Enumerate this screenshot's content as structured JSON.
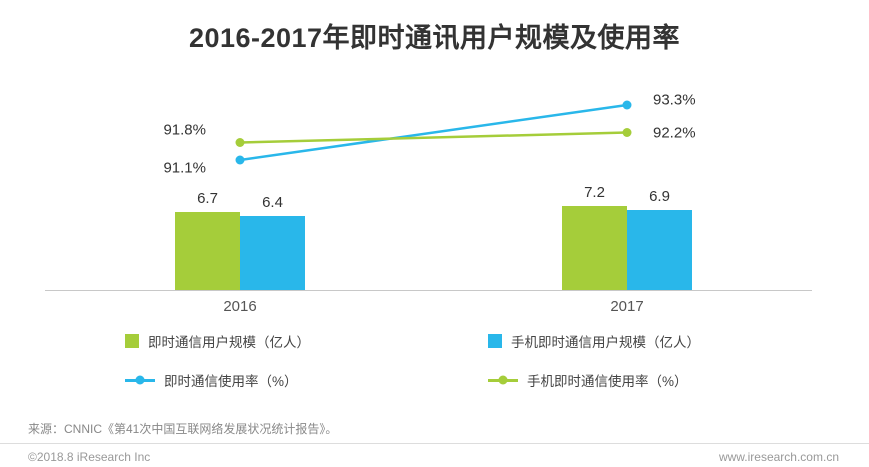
{
  "title": "2016-2017年即时通讯用户规模及使用率",
  "colors": {
    "green": "#a5cd3a",
    "blue": "#29b7ea",
    "title_text": "#333333",
    "axis_line": "#c8c8c8",
    "footer_text": "#999999"
  },
  "chart_data": {
    "type": "bar+line",
    "title": "2016-2017年即时通讯用户规模及使用率",
    "categories": [
      "2016",
      "2017"
    ],
    "bar_series": [
      {
        "name": "即时通信用户规模（亿人）",
        "color_key": "green",
        "values": [
          6.7,
          7.2
        ],
        "labels": [
          "6.7",
          "7.2"
        ]
      },
      {
        "name": "手机即时通信用户规模（亿人）",
        "color_key": "blue",
        "values": [
          6.4,
          6.9
        ],
        "labels": [
          "6.4",
          "6.9"
        ]
      }
    ],
    "line_series": [
      {
        "name": "即时通信使用率（%）",
        "color_key": "blue",
        "values": [
          91.1,
          93.3
        ],
        "labels": [
          "91.1%",
          "93.3%"
        ]
      },
      {
        "name": "手机即时通信使用率（%）",
        "color_key": "green",
        "values": [
          91.8,
          92.2
        ],
        "labels": [
          "91.8%",
          "92.2%"
        ]
      }
    ],
    "axes": {
      "x_visible": true,
      "y_visible": false,
      "gridlines": false
    },
    "bar_unit": "亿人",
    "line_unit": "%"
  },
  "legend": {
    "row1": [
      {
        "type": "bar",
        "color_key": "green",
        "label": "即时通信用户规模（亿人）"
      },
      {
        "type": "bar",
        "color_key": "blue",
        "label": "手机即时通信用户规模（亿人）"
      }
    ],
    "row2": [
      {
        "type": "line",
        "color_key": "blue",
        "label": "即时通信使用率（%）"
      },
      {
        "type": "line",
        "color_key": "green",
        "label": "手机即时通信使用率（%）"
      }
    ]
  },
  "source": "来源：CNNIC《第41次中国互联网络发展状况统计报告》。",
  "footer": {
    "left": "©2018.8 iResearch Inc",
    "right": "www.iresearch.com.cn"
  }
}
